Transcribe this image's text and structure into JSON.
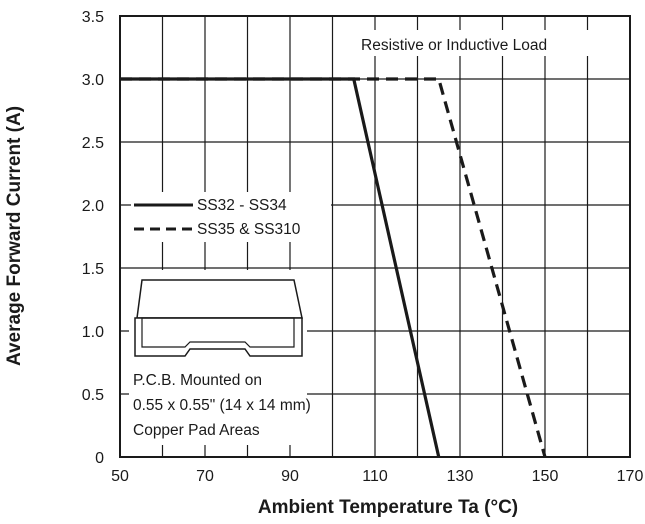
{
  "chart_data": {
    "type": "line",
    "title": "",
    "xlabel": "Ambient Temperature Ta (°C)",
    "ylabel": "Average Forward Current (A)",
    "xlim": [
      50,
      170
    ],
    "ylim": [
      0,
      3.5
    ],
    "x_ticks": [
      "50",
      "70",
      "90",
      "110",
      "130",
      "150",
      "170"
    ],
    "y_ticks": [
      "0",
      "0.5",
      "1.0",
      "1.5",
      "2.0",
      "2.5",
      "3.0",
      "3.5"
    ],
    "grid": true,
    "legend_position": "left",
    "series": [
      {
        "name": "SS32 - SS34",
        "style": "solid",
        "color": "#1a1a1a",
        "points": [
          [
            50,
            3.0
          ],
          [
            105,
            3.0
          ],
          [
            125,
            0
          ]
        ]
      },
      {
        "name": "SS35 & SS310",
        "style": "dashed",
        "color": "#1a1a1a",
        "points": [
          [
            50,
            3.0
          ],
          [
            125,
            3.0
          ],
          [
            150,
            0
          ]
        ]
      }
    ],
    "annotations": {
      "load": "Resistive or Inductive Load",
      "pcb_line1": "P.C.B. Mounted on",
      "pcb_line2": "0.55 x 0.55\" (14 x 14 mm)",
      "pcb_line3": "Copper Pad Areas"
    }
  }
}
